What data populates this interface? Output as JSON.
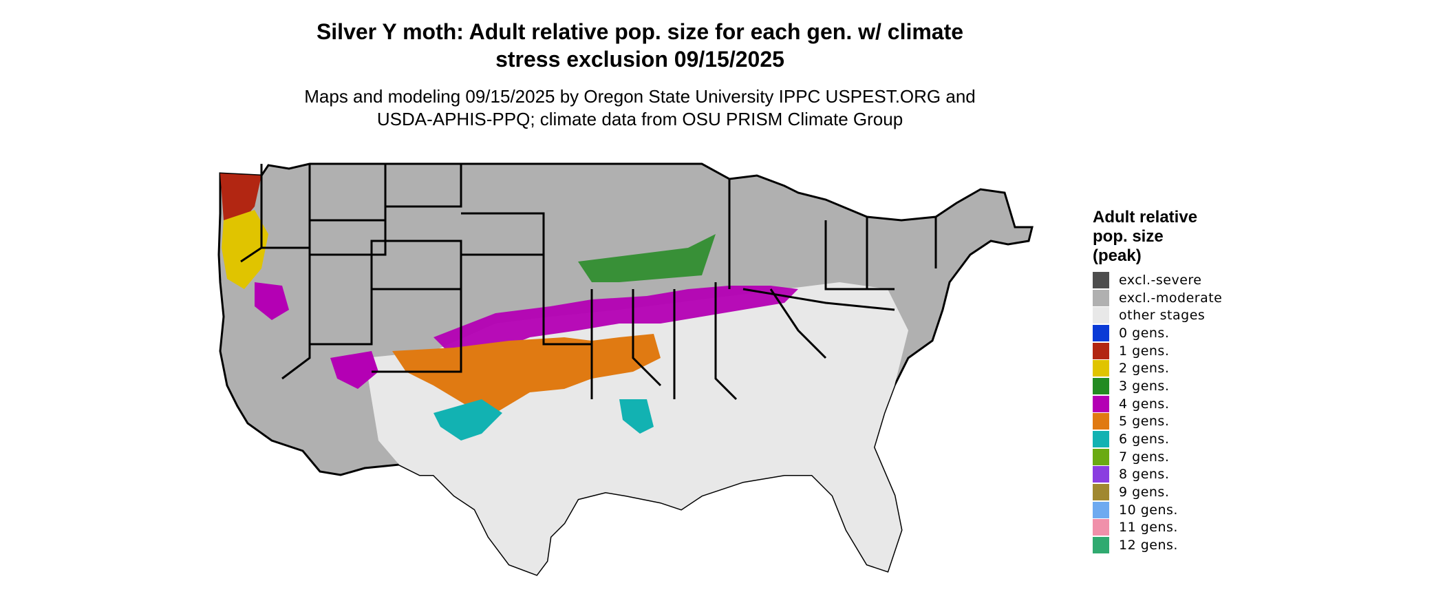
{
  "title": "Silver Y moth: Adult relative pop. size for each gen. w/ climate stress exclusion 09/15/2025",
  "title_lines": [
    "Silver Y moth: Adult relative pop. size for each gen. w/ climate",
    "stress exclusion 09/15/2025"
  ],
  "subtitle_lines": [
    "Maps and modeling 09/15/2025 by Oregon State University IPPC USPEST.ORG and",
    "USDA-APHIS-PPQ; climate data from OSU PRISM Climate Group"
  ],
  "legend": {
    "title_lines": [
      "Adult relative",
      "pop. size",
      "(peak)"
    ],
    "items": [
      {
        "label": "excl.-severe",
        "color": "#4d4d4d"
      },
      {
        "label": "excl.-moderate",
        "color": "#b0b0b0"
      },
      {
        "label": "other stages",
        "color": "#e8e8e8"
      },
      {
        "label": "0 gens.",
        "color": "#0a3ad6"
      },
      {
        "label": "1 gens.",
        "color": "#b22612"
      },
      {
        "label": "2 gens.",
        "color": "#e0c400"
      },
      {
        "label": "3 gens.",
        "color": "#238b22"
      },
      {
        "label": "4 gens.",
        "color": "#b400b4"
      },
      {
        "label": "5 gens.",
        "color": "#e07a12"
      },
      {
        "label": "6 gens.",
        "color": "#12b2b2"
      },
      {
        "label": "7 gens.",
        "color": "#6aaa12"
      },
      {
        "label": "8 gens.",
        "color": "#8a3ee0"
      },
      {
        "label": "9 gens.",
        "color": "#a08830"
      },
      {
        "label": "10 gens.",
        "color": "#6eaaf0"
      },
      {
        "label": "11 gens.",
        "color": "#f090aa"
      },
      {
        "label": "12 gens.",
        "color": "#30aa70"
      }
    ]
  }
}
